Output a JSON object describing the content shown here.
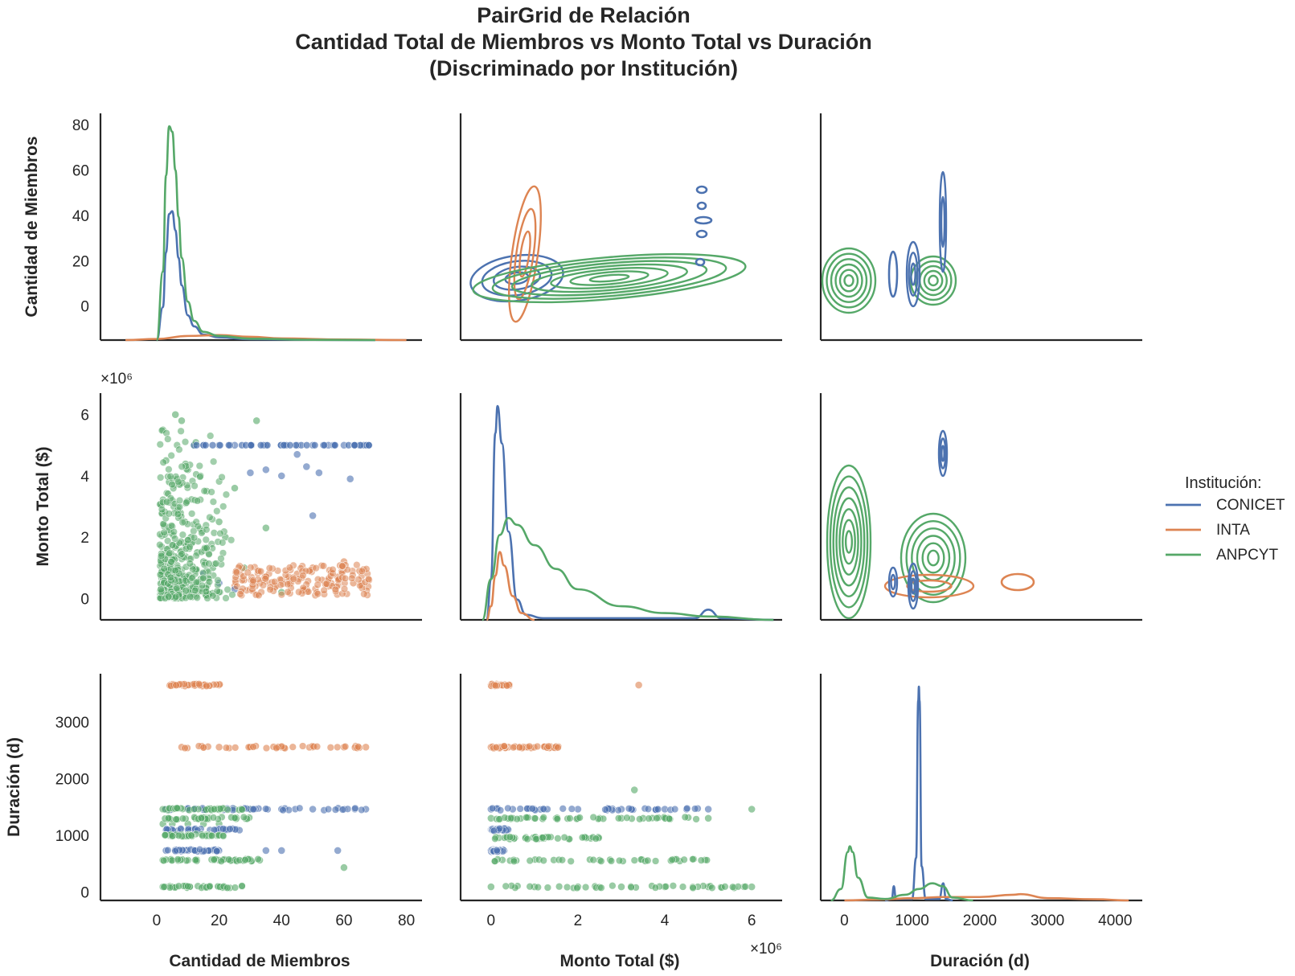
{
  "title_lines": [
    "PairGrid de Relación",
    "Cantidad Total de Miembros vs Monto Total vs Duración",
    "(Discriminado por Institución)"
  ],
  "legend": {
    "title": "Institución:",
    "items": [
      {
        "label": "CONICET",
        "color": "#4c72b0"
      },
      {
        "label": "INTA",
        "color": "#dd8452"
      },
      {
        "label": "ANPCYT",
        "color": "#55a868"
      }
    ]
  },
  "chart_data": {
    "type": "pairgrid",
    "variables": [
      {
        "label": "Cantidad de Miembros",
        "short": "Cantidad de Miembros",
        "lim": [
          -15,
          85
        ],
        "ticks": [
          0,
          20,
          40,
          60,
          80
        ],
        "tick_labels": [
          "0",
          "20",
          "40",
          "60",
          "80"
        ],
        "offset_label": ""
      },
      {
        "label": "Monto Total ($)",
        "lim": [
          -700000,
          6700000
        ],
        "ticks": [
          0,
          2000000,
          4000000,
          6000000
        ],
        "tick_labels": [
          "0",
          "2",
          "4",
          "6"
        ],
        "offset_label": "×10⁶"
      },
      {
        "label": "Duración (d)",
        "lim": [
          -150,
          3850
        ],
        "ticks": [
          0,
          1000,
          2000,
          3000
        ],
        "tick_labels": [
          "0",
          "1000",
          "2000",
          "3000"
        ],
        "offset_label": ""
      }
    ],
    "x_axis_labels": [
      "Cantidad de Miembros",
      "Monto Total ($)",
      "Duración (d)"
    ],
    "y_axis_labels": [
      "Cantidad de Miembros",
      "Monto Total ($)",
      "Duración (d)"
    ],
    "bottom_x_ticks": [
      {
        "ticks": [
          0,
          20,
          40,
          60,
          80
        ],
        "tick_labels": [
          "0",
          "20",
          "40",
          "60",
          "80"
        ],
        "lim": [
          -18,
          85
        ]
      },
      {
        "ticks": [
          0,
          2000000,
          4000000,
          6000000
        ],
        "tick_labels": [
          "0",
          "2",
          "4",
          "6"
        ],
        "lim": [
          -700000,
          6700000
        ],
        "offset_label": "×10⁶"
      },
      {
        "ticks": [
          0,
          1000,
          2000,
          3000,
          4000
        ],
        "tick_labels": [
          "0",
          "1000",
          "2000",
          "3000",
          "4000"
        ],
        "lim": [
          -350,
          4400
        ]
      }
    ],
    "diagonal_kde": [
      {
        "panel": "Cantidad de Miembros",
        "series": [
          {
            "name": "CONICET",
            "x": [
              0,
              2,
              3,
              4,
              5,
              6,
              7,
              8,
              10,
              12,
              15,
              20,
              30,
              50,
              70
            ],
            "y": [
              0,
              12,
              32,
              46,
              47,
              40,
              30,
              20,
              9,
              5,
              2,
              1,
              0.3,
              0.1,
              0
            ]
          },
          {
            "name": "INTA",
            "x": [
              -10,
              0,
              10,
              20,
              30,
              40,
              60,
              80
            ],
            "y": [
              0,
              0.4,
              1.5,
              1.8,
              1.2,
              0.6,
              0.2,
              0
            ]
          },
          {
            "name": "ANPCYT",
            "x": [
              0,
              2,
              3,
              4,
              5,
              6,
              7,
              8,
              10,
              12,
              15,
              20,
              30,
              50,
              70
            ],
            "y": [
              0,
              25,
              60,
              78,
              76,
              62,
              45,
              30,
              14,
              7,
              3,
              1.5,
              0.5,
              0.1,
              0
            ]
          }
        ]
      },
      {
        "panel": "Monto Total ($)",
        "series": [
          {
            "name": "CONICET",
            "x": [
              -100000,
              0,
              100000,
              150000,
              250000,
              400000,
              600000,
              800000,
              1200000,
              4700000,
              5000000,
              5300000,
              6500000
            ],
            "y": [
              0,
              1.2,
              5.5,
              6.3,
              5.2,
              2.6,
              0.6,
              0.15,
              0.05,
              0.05,
              0.3,
              0.05,
              0
            ]
          },
          {
            "name": "INTA",
            "x": [
              -100000,
              0,
              100000,
              200000,
              300000,
              500000,
              700000,
              1000000
            ],
            "y": [
              0,
              0.4,
              1.3,
              2.0,
              1.6,
              0.7,
              0.2,
              0
            ]
          },
          {
            "name": "ANPCYT",
            "x": [
              -200000,
              0,
              200000,
              400000,
              600000,
              1000000,
              1500000,
              2000000,
              3000000,
              4000000,
              5000000,
              6500000
            ],
            "y": [
              0,
              1.2,
              2.5,
              3.0,
              2.8,
              2.2,
              1.5,
              0.9,
              0.4,
              0.2,
              0.1,
              0
            ]
          }
        ]
      },
      {
        "panel": "Duración (d)",
        "series": [
          {
            "name": "CONICET",
            "x": [
              600,
              700,
              730,
              760,
              1000,
              1060,
              1090,
              1100,
              1110,
              1140,
              1200,
              1400,
              1460,
              1500,
              1600
            ],
            "y": [
              0,
              0.05,
              0.5,
              0.05,
              0.05,
              1.5,
              7,
              7.5,
              7,
              1.2,
              0.05,
              0.05,
              0.6,
              0.05,
              0
            ]
          },
          {
            "name": "INTA",
            "x": [
              0,
              500,
              1000,
              1500,
              2000,
              2500,
              2600,
              3000,
              3700,
              4200
            ],
            "y": [
              0,
              0.03,
              0.08,
              0.12,
              0.12,
              0.2,
              0.22,
              0.08,
              0.04,
              0
            ]
          },
          {
            "name": "ANPCYT",
            "x": [
              -200,
              -50,
              50,
              80,
              120,
              200,
              350,
              600,
              900,
              1100,
              1300,
              1450,
              1600,
              1900
            ],
            "y": [
              0,
              0.4,
              1.7,
              1.9,
              1.7,
              0.8,
              0.1,
              0.05,
              0.2,
              0.4,
              0.6,
              0.5,
              0.1,
              0
            ]
          }
        ]
      }
    ],
    "scatter": [
      {
        "panel": "Monto Total ($) vs Cantidad de Miembros",
        "series": [
          {
            "name": "CONICET",
            "description": "horizontal line at 5.0e6 from 12 to 68 members plus clusters near 0",
            "x": [
              12,
              15,
              20,
              25,
              30,
              35,
              40,
              45,
              50,
              55,
              60,
              65,
              68,
              30,
              35,
              40,
              45,
              48,
              52,
              62,
              50,
              15,
              20,
              25
            ],
            "y": [
              5000000,
              5000000,
              5000000,
              5000000,
              5000000,
              5000000,
              5000000,
              5000000,
              5000000,
              5000000,
              5000000,
              5000000,
              5000000,
              4100000,
              4200000,
              4000000,
              4700000,
              4300000,
              4100000,
              3900000,
              2700000,
              800000,
              500000,
              300000
            ]
          },
          {
            "name": "INTA",
            "x": [
              25,
              28,
              30,
              33,
              35,
              38,
              40,
              43,
              45,
              48,
              50,
              53,
              55,
              58,
              60,
              63,
              65,
              68
            ],
            "y": [
              400000,
              600000,
              300000,
              500000,
              700000,
              400000,
              600000,
              500000,
              800000,
              300000,
              1000000,
              600000,
              400000,
              700000,
              1200000,
              500000,
              900000,
              600000
            ]
          },
          {
            "name": "ANPCYT",
            "x": [
              2,
              3,
              4,
              5,
              6,
              7,
              8,
              9,
              10,
              11,
              12,
              13,
              14,
              15,
              16,
              18,
              20,
              22,
              25,
              28,
              32,
              35,
              40
            ],
            "y": [
              5500000,
              4500000,
              3800000,
              3200000,
              6000000,
              2800000,
              5800000,
              2500000,
              4200000,
              2000000,
              5000000,
              1500000,
              4000000,
              1200000,
              3500000,
              1000000,
              2500000,
              2000000,
              3600000,
              1000000,
              5800000,
              2300000,
              200000
            ]
          }
        ]
      },
      {
        "panel": "Duración (d) vs Cantidad de Miembros",
        "series": [
          {
            "name": "CONICET",
            "x": [
              3,
              10,
              20,
              30,
              40,
              50,
              60,
              67,
              3,
              10,
              20,
              3,
              10,
              20,
              35,
              40,
              58
            ],
            "y": [
              1460,
              1460,
              1460,
              1460,
              1460,
              1460,
              1460,
              1460,
              1100,
              1100,
              1100,
              730,
              730,
              730,
              730,
              730,
              730
            ]
          },
          {
            "name": "INTA",
            "x": [
              5,
              10,
              15,
              20,
              8,
              15,
              20,
              30,
              40,
              50,
              60,
              67
            ],
            "y": [
              3650,
              3650,
              3650,
              3650,
              2555,
              2555,
              2555,
              2555,
              2555,
              2555,
              2555,
              2555
            ]
          },
          {
            "name": "ANPCYT",
            "x": [
              2,
              5,
              10,
              15,
              20,
              25,
              30,
              2,
              5,
              10,
              15,
              20,
              2,
              5,
              10,
              20,
              33,
              2,
              10,
              20,
              60
            ],
            "y": [
              1460,
              1460,
              1460,
              1460,
              1460,
              1460,
              1460,
              1200,
              1200,
              1200,
              1200,
              1200,
              560,
              560,
              560,
              560,
              560,
              90,
              90,
              90,
              430
            ]
          }
        ]
      },
      {
        "panel": "Duración (d) vs Monto Total ($)",
        "series": [
          {
            "name": "CONICET",
            "x": [
              0,
              500000,
              1000000,
              2000000,
              3000000,
              4000000,
              4500000,
              5000000,
              0,
              200000,
              400000,
              0,
              200000,
              300000
            ],
            "y": [
              1460,
              1460,
              1460,
              1460,
              1460,
              1460,
              1460,
              1460,
              1100,
              1100,
              1100,
              730,
              730,
              730
            ]
          },
          {
            "name": "INTA",
            "x": [
              0,
              100000,
              200000,
              3400000,
              0,
              200000,
              400000,
              800000,
              1500000
            ],
            "y": [
              3650,
              3650,
              3650,
              3650,
              2555,
              2555,
              2555,
              2555,
              2555
            ]
          },
          {
            "name": "ANPCYT",
            "x": [
              0,
              500000,
              1000000,
              1500000,
              2000000,
              2500000,
              3000000,
              3500000,
              4000000,
              5000000,
              6000000,
              0,
              1000000,
              2000000,
              3000000,
              4000000,
              5000000,
              6000000,
              2500000,
              3300000
            ],
            "y": [
              1300,
              1300,
              1300,
              1300,
              1300,
              1300,
              1300,
              1300,
              1300,
              1300,
              1460,
              90,
              90,
              90,
              90,
              90,
              90,
              90,
              560,
              1800
            ]
          }
        ]
      }
    ],
    "kde_contour_panels": [
      {
        "panel": "Cantidad de Miembros vs Monto Total ($)",
        "series": [
          "CONICET",
          "INTA",
          "ANPCYT"
        ]
      },
      {
        "panel": "Cantidad de Miembros vs Duración (d)",
        "series": [
          "CONICET",
          "ANPCYT"
        ]
      },
      {
        "panel": "Monto Total ($) vs Duración (d)",
        "series": [
          "CONICET",
          "INTA",
          "ANPCYT"
        ]
      }
    ]
  }
}
